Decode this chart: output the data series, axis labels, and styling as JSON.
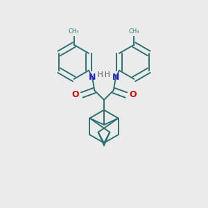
{
  "background_color": "#ebebeb",
  "bond_color": "#2d7070",
  "N_color": "#2020cc",
  "O_color": "#cc1010",
  "H_color": "#555555",
  "line_width": 1.4,
  "dbo": 0.018,
  "fig_size": [
    3.0,
    3.0
  ],
  "dpi": 100,
  "xlim": [
    0.0,
    1.0
  ],
  "ylim": [
    0.0,
    1.0
  ]
}
